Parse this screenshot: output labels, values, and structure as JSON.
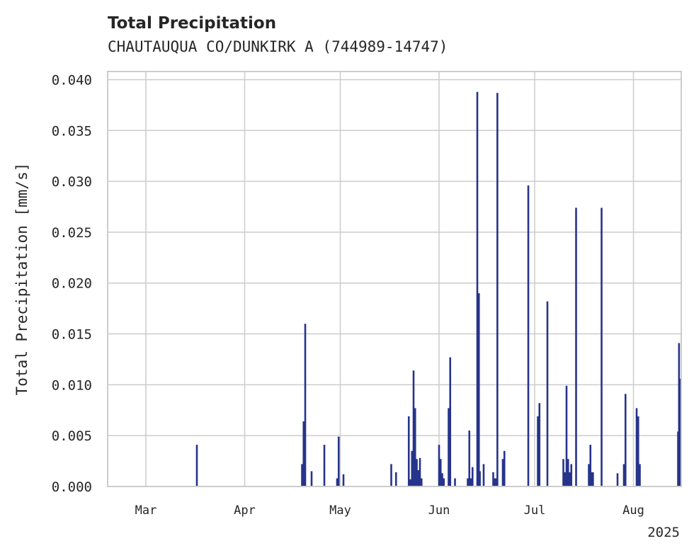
{
  "chart_data": {
    "type": "bar",
    "title": "Total Precipitation",
    "subtitle": "CHAUTAUQUA CO/DUNKIRK A (744989-14747)",
    "xlabel": "",
    "ylabel": "Total Precipitation [mm/s]",
    "ylim": [
      0,
      0.0408
    ],
    "yticks": [
      0.0,
      0.005,
      0.01,
      0.015,
      0.02,
      0.025,
      0.03,
      0.035,
      0.04
    ],
    "ytick_labels": [
      "0.000",
      "0.005",
      "0.010",
      "0.015",
      "0.020",
      "0.025",
      "0.030",
      "0.035",
      "0.040"
    ],
    "xlim_days": [
      -12,
      168
    ],
    "xticks": [
      {
        "label": "Mar",
        "day": 0
      },
      {
        "label": "Apr",
        "day": 31
      },
      {
        "label": "May",
        "day": 61
      },
      {
        "label": "Jun",
        "day": 92
      },
      {
        "label": "Jul",
        "day": 122
      },
      {
        "label": "Aug",
        "day": 153
      }
    ],
    "year_label": "2025",
    "grid": true,
    "bar_color": "#27348b",
    "series": [
      {
        "name": "Total Precipitation",
        "x_day": [
          16,
          49,
          49.5,
          50,
          52,
          56,
          60,
          60.5,
          62,
          77,
          78.5,
          82.5,
          83,
          83.5,
          84,
          84.5,
          85,
          85.5,
          86,
          86.5,
          92,
          92.5,
          93,
          93.5,
          95,
          95.5,
          97,
          101,
          101.5,
          102,
          102.5,
          104,
          104.5,
          104.8,
          106,
          109,
          109.5,
          110,
          110.3,
          112,
          112.5,
          120,
          123,
          123.5,
          126,
          131,
          131.5,
          132,
          132.5,
          133,
          133.5,
          135,
          139,
          139.5,
          140,
          140.3,
          143,
          148,
          150,
          150.5,
          154,
          154.5,
          155,
          167,
          167.3,
          167.6
        ],
        "values": [
          0.0041,
          0.0022,
          0.0064,
          0.016,
          0.0015,
          0.0041,
          0.0008,
          0.0049,
          0.0012,
          0.0022,
          0.0014,
          0.0069,
          0.0007,
          0.0035,
          0.0114,
          0.0077,
          0.0027,
          0.0016,
          0.0028,
          0.0008,
          0.0041,
          0.0027,
          0.0013,
          0.0008,
          0.0077,
          0.0127,
          0.0008,
          0.0008,
          0.0055,
          0.0008,
          0.0019,
          0.0388,
          0.019,
          0.0015,
          0.0022,
          0.0014,
          0.0008,
          0.0008,
          0.0387,
          0.0027,
          0.0035,
          0.0296,
          0.0069,
          0.0082,
          0.0182,
          0.0027,
          0.0014,
          0.0099,
          0.0027,
          0.0014,
          0.0022,
          0.0274,
          0.0022,
          0.0041,
          0.0014,
          0.0014,
          0.0274,
          0.0013,
          0.0022,
          0.0091,
          0.0077,
          0.0069,
          0.0022,
          0.0054,
          0.0141,
          0.0106
        ]
      }
    ]
  }
}
